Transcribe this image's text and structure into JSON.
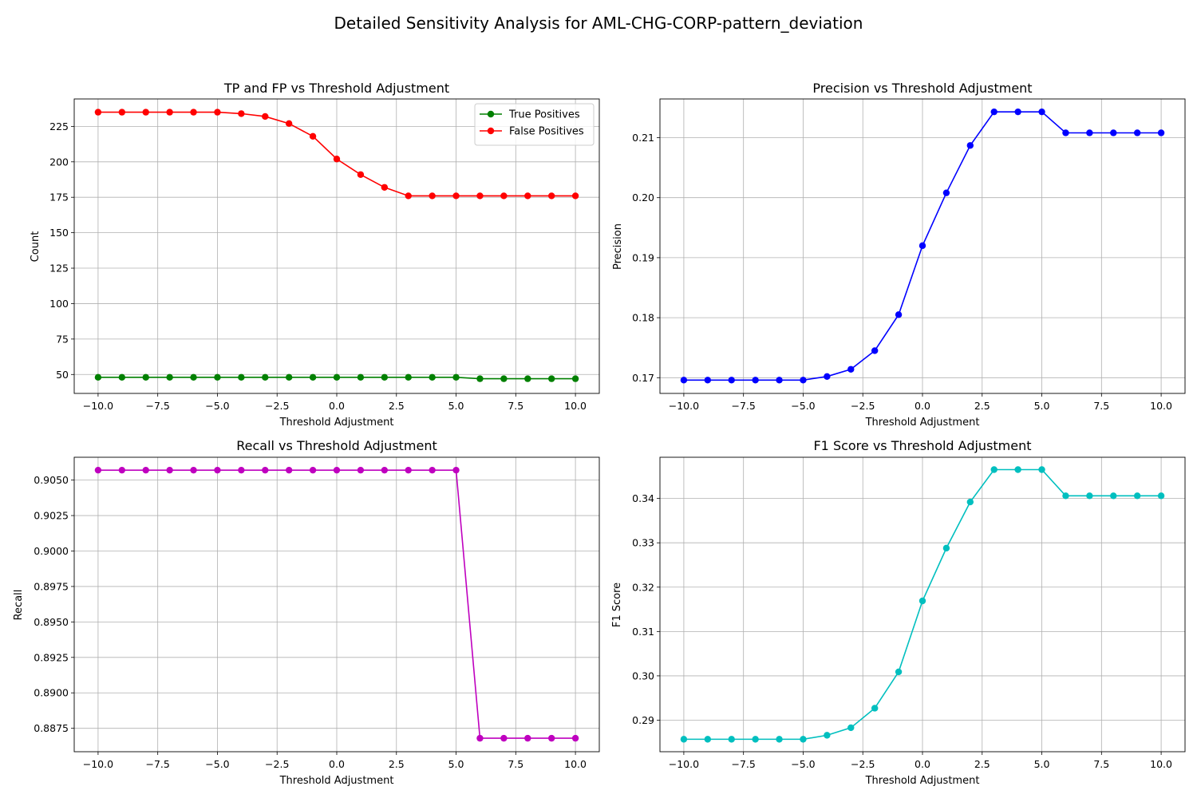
{
  "figure_title": "Detailed Sensitivity Analysis for AML-CHG-CORP-pattern_deviation",
  "chart_data": [
    {
      "type": "line",
      "title": "TP and FP vs Threshold Adjustment",
      "xlabel": "Threshold Adjustment",
      "ylabel": "Count",
      "xlim": [
        -11,
        11
      ],
      "ylim": [
        36.65,
        244.35
      ],
      "xticks": [
        -10.0,
        -7.5,
        -5.0,
        -2.5,
        0.0,
        2.5,
        5.0,
        7.5,
        10.0
      ],
      "xtick_labels": [
        "−10.0",
        "−7.5",
        "−5.0",
        "−2.5",
        "0.0",
        "2.5",
        "5.0",
        "7.5",
        "10.0"
      ],
      "yticks": [
        50,
        75,
        100,
        125,
        150,
        175,
        200,
        225
      ],
      "ytick_labels": [
        "50",
        "75",
        "100",
        "125",
        "150",
        "175",
        "200",
        "225"
      ],
      "grid": true,
      "legend_position": "upper right",
      "x": [
        -10,
        -9,
        -8,
        -7,
        -6,
        -5,
        -4,
        -3,
        -2,
        -1,
        0,
        1,
        2,
        3,
        4,
        5,
        6,
        7,
        8,
        9,
        10
      ],
      "series": [
        {
          "name": "True Positives",
          "color": "#008000",
          "values": [
            48,
            48,
            48,
            48,
            48,
            48,
            48,
            48,
            48,
            48,
            48,
            48,
            48,
            48,
            48,
            48,
            47,
            47,
            47,
            47,
            47
          ]
        },
        {
          "name": "False Positives",
          "color": "#ff0000",
          "values": [
            235,
            235,
            235,
            235,
            235,
            235,
            234,
            232,
            227,
            218,
            202,
            191,
            182,
            176,
            176,
            176,
            176,
            176,
            176,
            176,
            176
          ]
        }
      ]
    },
    {
      "type": "line",
      "title": "Precision vs Threshold Adjustment",
      "xlabel": "Threshold Adjustment",
      "ylabel": "Precision",
      "xlim": [
        -11,
        11
      ],
      "ylim": [
        0.16738,
        0.21645
      ],
      "xticks": [
        -10.0,
        -7.5,
        -5.0,
        -2.5,
        0.0,
        2.5,
        5.0,
        7.5,
        10.0
      ],
      "xtick_labels": [
        "−10.0",
        "−7.5",
        "−5.0",
        "−2.5",
        "0.0",
        "2.5",
        "5.0",
        "7.5",
        "10.0"
      ],
      "yticks": [
        0.17,
        0.18,
        0.19,
        0.2,
        0.21
      ],
      "ytick_labels": [
        "0.17",
        "0.18",
        "0.19",
        "0.20",
        "0.21"
      ],
      "grid": true,
      "x": [
        -10,
        -9,
        -8,
        -7,
        -6,
        -5,
        -4,
        -3,
        -2,
        -1,
        0,
        1,
        2,
        3,
        4,
        5,
        6,
        7,
        8,
        9,
        10
      ],
      "series": [
        {
          "color": "#0000ff",
          "values": [
            0.1696,
            0.1696,
            0.1696,
            0.1696,
            0.1696,
            0.1696,
            0.1702,
            0.1714,
            0.1745,
            0.1805,
            0.192,
            0.2008,
            0.2087,
            0.2143,
            0.2143,
            0.2143,
            0.2108,
            0.2108,
            0.2108,
            0.2108,
            0.2108
          ]
        }
      ]
    },
    {
      "type": "line",
      "title": "Recall vs Threshold Adjustment",
      "xlabel": "Threshold Adjustment",
      "ylabel": "Recall",
      "xlim": [
        -11,
        11
      ],
      "ylim": [
        0.88585,
        0.90661
      ],
      "xticks": [
        -10.0,
        -7.5,
        -5.0,
        -2.5,
        0.0,
        2.5,
        5.0,
        7.5,
        10.0
      ],
      "xtick_labels": [
        "−10.0",
        "−7.5",
        "−5.0",
        "−2.5",
        "0.0",
        "2.5",
        "5.0",
        "7.5",
        "10.0"
      ],
      "yticks": [
        0.8875,
        0.89,
        0.8925,
        0.895,
        0.8975,
        0.9,
        0.9025,
        0.905
      ],
      "ytick_labels": [
        "0.8875",
        "0.8900",
        "0.8925",
        "0.8950",
        "0.8975",
        "0.9000",
        "0.9025",
        "0.9050"
      ],
      "grid": true,
      "x": [
        -10,
        -9,
        -8,
        -7,
        -6,
        -5,
        -4,
        -3,
        -2,
        -1,
        0,
        1,
        2,
        3,
        4,
        5,
        6,
        7,
        8,
        9,
        10
      ],
      "series": [
        {
          "color": "#bf00bf",
          "values": [
            0.9057,
            0.9057,
            0.9057,
            0.9057,
            0.9057,
            0.9057,
            0.9057,
            0.9057,
            0.9057,
            0.9057,
            0.9057,
            0.9057,
            0.9057,
            0.9057,
            0.9057,
            0.9057,
            0.8868,
            0.8868,
            0.8868,
            0.8868,
            0.8868
          ]
        }
      ]
    },
    {
      "type": "line",
      "title": "F1 Score vs Threshold Adjustment",
      "xlabel": "Threshold Adjustment",
      "ylabel": "F1 Score",
      "xlim": [
        -11,
        11
      ],
      "ylim": [
        0.28289,
        0.34929
      ],
      "xticks": [
        -10.0,
        -7.5,
        -5.0,
        -2.5,
        0.0,
        2.5,
        5.0,
        7.5,
        10.0
      ],
      "xtick_labels": [
        "−10.0",
        "−7.5",
        "−5.0",
        "−2.5",
        "0.0",
        "2.5",
        "5.0",
        "7.5",
        "10.0"
      ],
      "yticks": [
        0.29,
        0.3,
        0.31,
        0.32,
        0.33,
        0.34
      ],
      "ytick_labels": [
        "0.29",
        "0.30",
        "0.31",
        "0.32",
        "0.33",
        "0.34"
      ],
      "grid": true,
      "x": [
        -10,
        -9,
        -8,
        -7,
        -6,
        -5,
        -4,
        -3,
        -2,
        -1,
        0,
        1,
        2,
        3,
        4,
        5,
        6,
        7,
        8,
        9,
        10
      ],
      "series": [
        {
          "color": "#00bfbf",
          "values": [
            0.2857,
            0.2857,
            0.2857,
            0.2857,
            0.2857,
            0.2857,
            0.2866,
            0.2883,
            0.2927,
            0.3009,
            0.3169,
            0.3288,
            0.3392,
            0.3465,
            0.3465,
            0.3465,
            0.3406,
            0.3406,
            0.3406,
            0.3406,
            0.3406
          ]
        }
      ]
    }
  ]
}
